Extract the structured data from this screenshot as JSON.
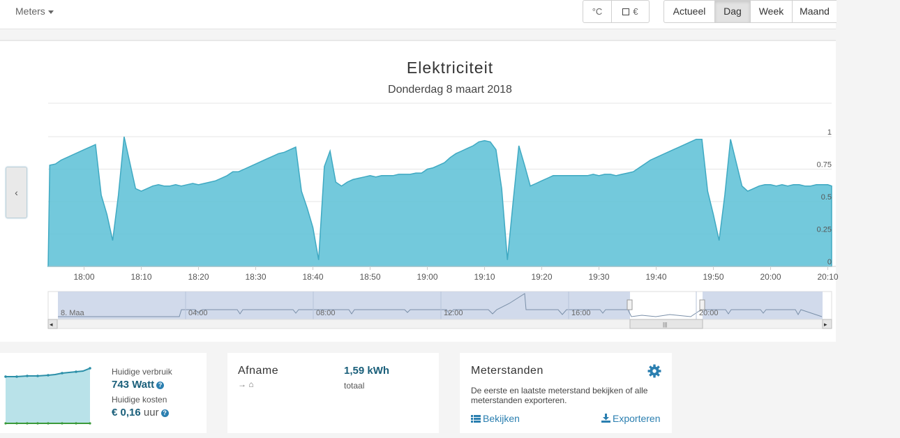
{
  "toolbar": {
    "meters_label": "Meters",
    "unit_celsius": "°C",
    "unit_euro": "€",
    "periods": [
      {
        "label": "Actueel",
        "active": false
      },
      {
        "label": "Dag",
        "active": true
      },
      {
        "label": "Week",
        "active": false
      },
      {
        "label": "Maand",
        "active": false
      }
    ]
  },
  "chart": {
    "title": "Elektriciteit",
    "subtitle": "Donderdag 8 maart 2018",
    "prev_label": "‹",
    "scrollbar_left": "◂",
    "scrollbar_right": "▸",
    "scrollbar_grip": "|||"
  },
  "chart_data": {
    "type": "area",
    "color": "#5bc0d6",
    "x_start": "17:54",
    "x_end": "20:11",
    "x_tick_labels": [
      "18:00",
      "18:10",
      "18:20",
      "18:30",
      "18:40",
      "18:50",
      "19:00",
      "19:10",
      "19:20",
      "19:30",
      "19:40",
      "19:50",
      "20:00",
      "20:10"
    ],
    "y_tick_labels": [
      "0",
      "0.25",
      "0.5",
      "0.75",
      "1"
    ],
    "ylim": [
      0,
      1
    ],
    "grid": true,
    "x_minutes_from_17_54": [
      0,
      1,
      2,
      3,
      4,
      5,
      6,
      7,
      8,
      9,
      10,
      11,
      12,
      13,
      14,
      15,
      16,
      17,
      18,
      19,
      20,
      21,
      22,
      23,
      24,
      25,
      26,
      27,
      28,
      29,
      30,
      31,
      32,
      33,
      34,
      35,
      36,
      37,
      38,
      39,
      40,
      41,
      42,
      43,
      44,
      45,
      46,
      47,
      48,
      49,
      50,
      51,
      52,
      53,
      54,
      55,
      56,
      57,
      58,
      59,
      60,
      61,
      62,
      63,
      64,
      65,
      66,
      67,
      68,
      69,
      70,
      71,
      72,
      73,
      74,
      75,
      76,
      77,
      78,
      79,
      80,
      81,
      82,
      83,
      84,
      85,
      86,
      87,
      88,
      89,
      90,
      91,
      92,
      93,
      94,
      95,
      96,
      97,
      98,
      99,
      100,
      101,
      102,
      103,
      104,
      105,
      106,
      107,
      108,
      109,
      110,
      111,
      112,
      113,
      114,
      115,
      116,
      117,
      118,
      119,
      120,
      121,
      122,
      123,
      124,
      125,
      126,
      127,
      128,
      129,
      130,
      131,
      132,
      133,
      134,
      135,
      136,
      137
    ],
    "values": [
      0.78,
      0.79,
      0.82,
      0.84,
      0.86,
      0.88,
      0.9,
      0.92,
      0.94,
      0.55,
      0.4,
      0.2,
      0.55,
      1.0,
      0.8,
      0.6,
      0.58,
      0.6,
      0.62,
      0.63,
      0.62,
      0.62,
      0.63,
      0.62,
      0.63,
      0.64,
      0.63,
      0.64,
      0.65,
      0.66,
      0.68,
      0.7,
      0.73,
      0.73,
      0.75,
      0.77,
      0.79,
      0.81,
      0.83,
      0.85,
      0.87,
      0.88,
      0.9,
      0.92,
      0.58,
      0.45,
      0.3,
      0.05,
      0.77,
      0.89,
      0.65,
      0.62,
      0.65,
      0.67,
      0.68,
      0.69,
      0.7,
      0.69,
      0.7,
      0.7,
      0.7,
      0.71,
      0.71,
      0.71,
      0.72,
      0.72,
      0.75,
      0.76,
      0.78,
      0.8,
      0.84,
      0.87,
      0.89,
      0.91,
      0.93,
      0.96,
      0.97,
      0.96,
      0.9,
      0.6,
      0.05,
      0.5,
      0.93,
      0.78,
      0.62,
      0.64,
      0.66,
      0.68,
      0.7,
      0.7,
      0.7,
      0.7,
      0.7,
      0.7,
      0.7,
      0.71,
      0.7,
      0.71,
      0.71,
      0.7,
      0.71,
      0.72,
      0.73,
      0.76,
      0.79,
      0.82,
      0.84,
      0.86,
      0.88,
      0.9,
      0.92,
      0.94,
      0.96,
      0.98,
      0.98,
      0.58,
      0.4,
      0.2,
      0.55,
      0.98,
      0.8,
      0.62,
      0.58,
      0.6,
      0.62,
      0.63,
      0.63,
      0.62,
      0.63,
      0.62,
      0.63,
      0.63,
      0.62,
      0.62,
      0.63,
      0.63,
      0.63,
      0.62
    ]
  },
  "navigator": {
    "labels": [
      "8. Maa",
      "04:00",
      "08:00",
      "12:00",
      "16:00",
      "20:00"
    ]
  },
  "cards": {
    "current": {
      "usage_label": "Huidige verbruik",
      "usage_value": "743 Watt",
      "cost_label": "Huidige kosten",
      "cost_value": "€ 0,16",
      "cost_unit": "uur",
      "help_icon": "?"
    },
    "afname": {
      "title": "Afname",
      "value": "1,59 kWh",
      "sublabel": "totaal",
      "icons": "→ ⌂"
    },
    "meterstanden": {
      "title": "Meterstanden",
      "description": "De eerste en laatste meterstand bekijken of alle meterstanden exporteren.",
      "view_label": "Bekijken",
      "export_label": "Exporteren"
    }
  }
}
